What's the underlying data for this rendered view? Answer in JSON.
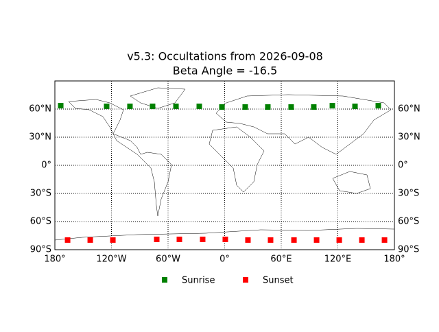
{
  "chart_data": {
    "type": "scatter",
    "title": "v5.3: Occultations from 2026-09-08",
    "subtitle": "Beta Angle = -16.5",
    "xlim": [
      -180,
      180
    ],
    "ylim": [
      -90,
      90
    ],
    "xticks": [
      {
        "value": -180,
        "label": "180°"
      },
      {
        "value": -120,
        "label": "120°W"
      },
      {
        "value": -60,
        "label": "60°W"
      },
      {
        "value": 0,
        "label": "0°"
      },
      {
        "value": 60,
        "label": "60°E"
      },
      {
        "value": 120,
        "label": "120°E"
      },
      {
        "value": 180,
        "label": "180°"
      }
    ],
    "yticks": [
      {
        "value": -90,
        "label": "90°S"
      },
      {
        "value": -60,
        "label": "60°S"
      },
      {
        "value": -30,
        "label": "30°S"
      },
      {
        "value": 0,
        "label": "0°"
      },
      {
        "value": 30,
        "label": "30°N"
      },
      {
        "value": 60,
        "label": "60°N"
      }
    ],
    "grid": true,
    "series": [
      {
        "name": "Sunrise",
        "color": "#008000",
        "x": [
          -173.8,
          -125.1,
          -100.4,
          -76.4,
          -51.6,
          -26.9,
          -2.9,
          21.8,
          45.8,
          70.5,
          94.5,
          114.2,
          138.2,
          162.9
        ],
        "values": [
          63.6,
          62.9,
          62.9,
          62.9,
          62.9,
          62.9,
          62.2,
          62.2,
          62.2,
          62.2,
          62.2,
          63.6,
          62.9,
          63.6
        ]
      },
      {
        "name": "Sunset",
        "color": "#ff0000",
        "x": [
          -166.5,
          -142.5,
          -118.5,
          -72,
          -48,
          -23.3,
          0.7,
          24.7,
          48.7,
          73.5,
          97.5,
          121.5,
          145.5,
          169.5
        ],
        "values": [
          -79.7,
          -79.7,
          -79.7,
          -79.0,
          -79.0,
          -79.0,
          -79.0,
          -79.7,
          -79.7,
          -79.7,
          -79.7,
          -79.7,
          -79.7,
          -79.7
        ]
      }
    ]
  }
}
